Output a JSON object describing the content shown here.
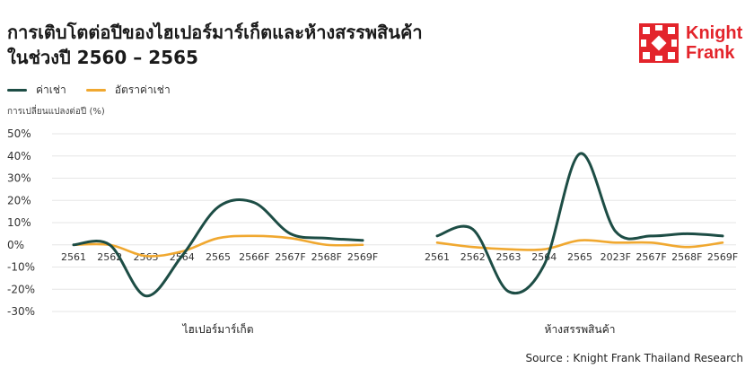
{
  "title": {
    "line1": "การเติบโตต่อปีของไฮเปอร์มาร์เก็ตและห้างสรรพสินค้า",
    "line2": "ในช่วงปี 2560 – 2565"
  },
  "logo": {
    "line1": "Knight",
    "line2": "Frank",
    "color": "#e3242b"
  },
  "source": "Source : Knight Frank Thailand Research",
  "chart_data": {
    "type": "line",
    "ylabel": "การเปลี่ยนแปลงต่อปี (%)",
    "ylim": [
      -30,
      50
    ],
    "yticks": [
      "50%",
      "40%",
      "30%",
      "20%",
      "10%",
      "0%",
      "-10%",
      "-20%",
      "-30%"
    ],
    "grid": true,
    "legend_position": "top-left",
    "series_names": [
      "ค่าเช่า",
      "อัตราค่าเช่า"
    ],
    "colors": [
      "#1d4d45",
      "#f0a830"
    ],
    "panels": [
      {
        "name": "ไฮเปอร์มาร์เก็ต",
        "categories": [
          "2561",
          "2562",
          "2563",
          "2564",
          "2565",
          "2566F",
          "2567F",
          "2568F",
          "2569F"
        ],
        "series": [
          {
            "name": "ค่าเช่า",
            "values": [
              0,
              0,
              -23,
              -5,
              17,
              19,
              5,
              3,
              2
            ]
          },
          {
            "name": "อัตราค่าเช่า",
            "values": [
              0,
              0,
              -5,
              -3,
              3,
              4,
              3,
              0,
              0
            ]
          }
        ]
      },
      {
        "name": "ห้างสรรพสินค้า",
        "categories": [
          "2561",
          "2562",
          "2563",
          "2564",
          "2565",
          "2023F",
          "2567F",
          "2568F",
          "2569F"
        ],
        "series": [
          {
            "name": "ค่าเช่า",
            "values": [
              4,
              7,
              -21,
              -9,
              41,
              6,
              4,
              5,
              4
            ]
          },
          {
            "name": "อัตราค่าเช่า",
            "values": [
              1,
              -1,
              -2,
              -2,
              2,
              1,
              1,
              -1,
              1
            ]
          }
        ]
      }
    ]
  }
}
